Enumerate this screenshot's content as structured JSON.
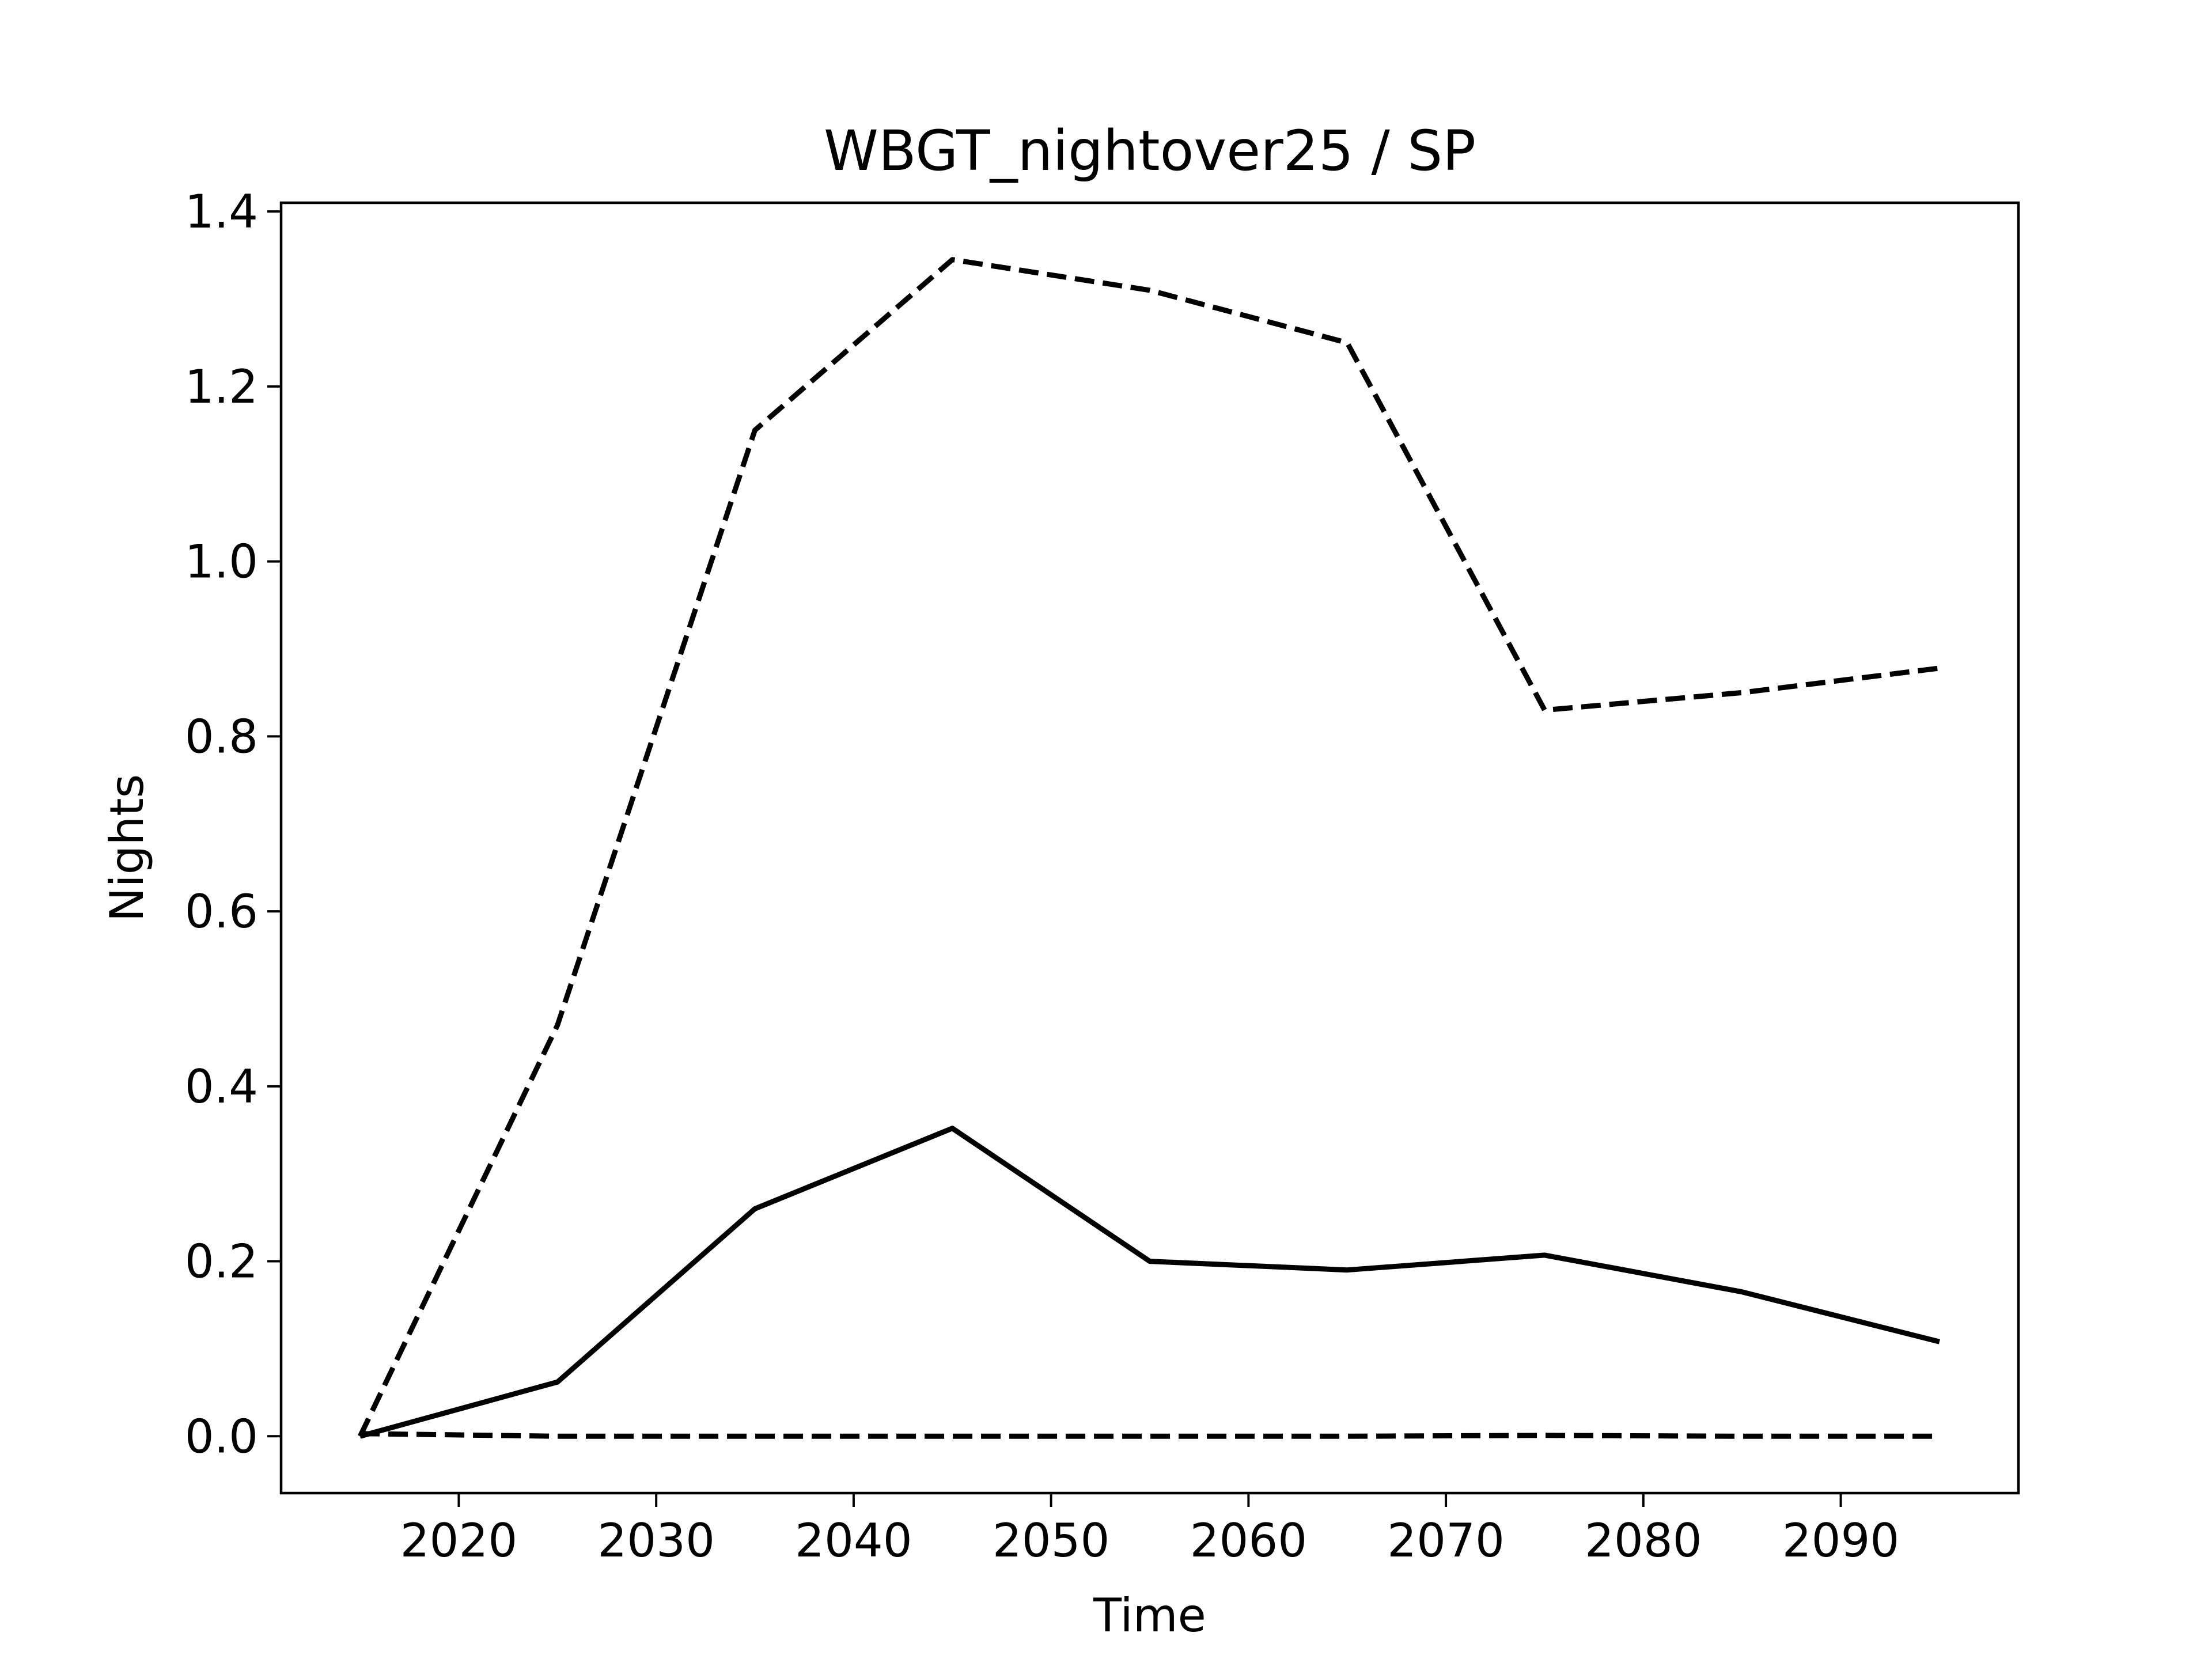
{
  "chart_data": {
    "type": "line",
    "title": "WBGT_nightover25 / SP",
    "xlabel": "Time",
    "ylabel": "Nights",
    "xlim": [
      2011,
      2099
    ],
    "ylim": [
      -0.065,
      1.41
    ],
    "xticks": [
      2020,
      2030,
      2040,
      2050,
      2060,
      2070,
      2080,
      2090
    ],
    "yticks": [
      0.0,
      0.2,
      0.4,
      0.6,
      0.8,
      1.0,
      1.2,
      1.4
    ],
    "ytick_labels": [
      "0.0",
      "0.2",
      "0.4",
      "0.6",
      "0.8",
      "1.0",
      "1.2",
      "1.4"
    ],
    "grid": false,
    "x": [
      2015,
      2025,
      2035,
      2045,
      2055,
      2065,
      2075,
      2085,
      2095
    ],
    "series": [
      {
        "style": "dashed",
        "color": "#000000",
        "values": [
          0.0,
          0.47,
          1.15,
          1.345,
          1.31,
          1.25,
          0.83,
          0.85,
          0.878
        ]
      },
      {
        "style": "solid",
        "color": "#000000",
        "values": [
          0.0,
          0.062,
          0.26,
          0.352,
          0.2,
          0.19,
          0.207,
          0.165,
          0.108
        ]
      },
      {
        "style": "dashed",
        "color": "#000000",
        "values": [
          0.003,
          0.0,
          0.0,
          0.0,
          0.0,
          0.0,
          0.001,
          0.0,
          0.0
        ]
      }
    ]
  }
}
